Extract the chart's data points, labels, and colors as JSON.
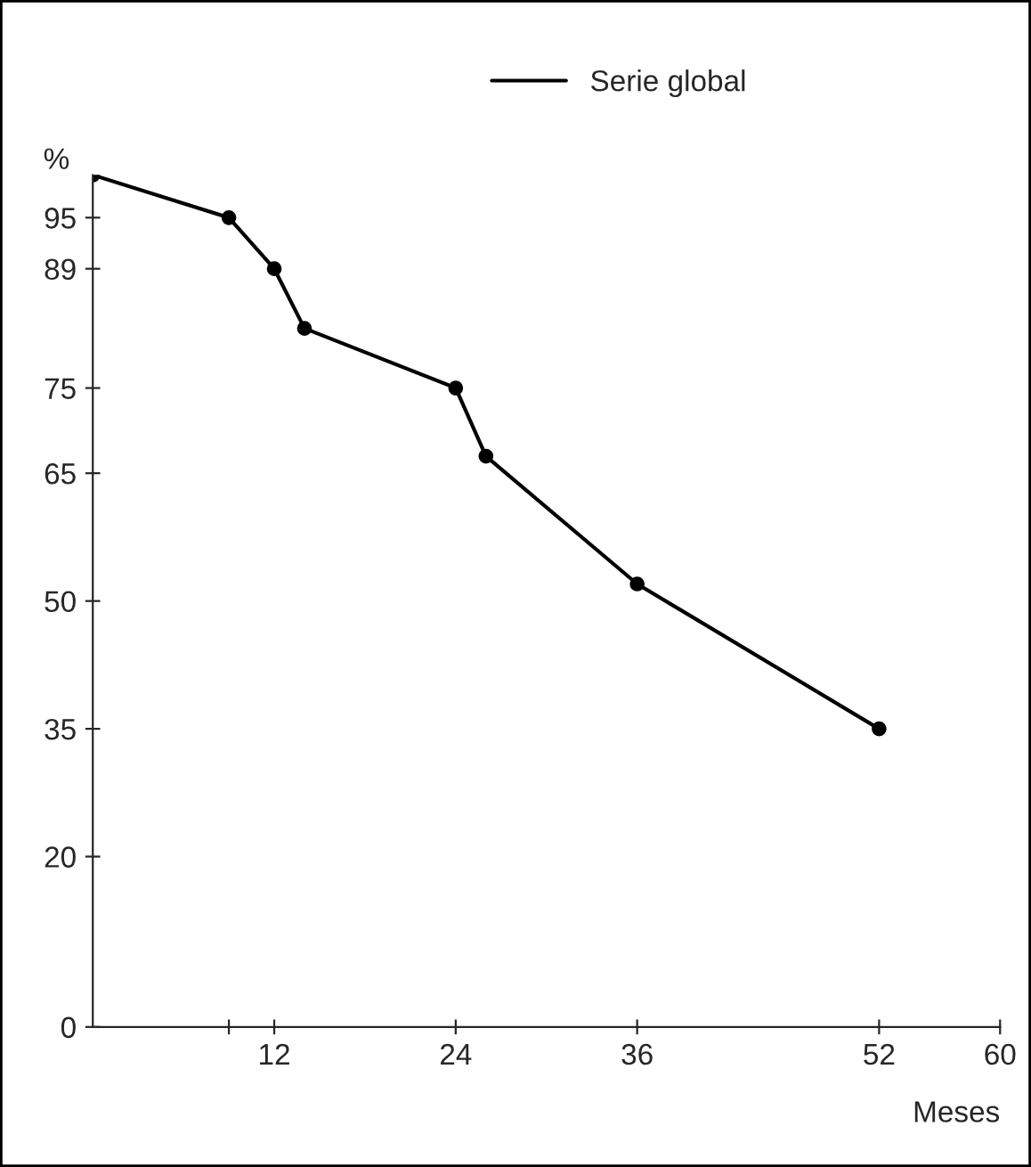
{
  "chart_data": {
    "type": "line",
    "xlabel": "Meses",
    "ylabel": "%",
    "x": [
      0,
      9,
      12,
      14,
      24,
      26,
      36,
      52
    ],
    "series": [
      {
        "name": "Serie global",
        "color": "#000000",
        "values": [
          100,
          95,
          89,
          82,
          75,
          67,
          52,
          35
        ]
      }
    ],
    "xlim": [
      0,
      60
    ],
    "xticks": [
      {
        "value": 9,
        "label": null
      },
      12,
      24,
      36,
      52,
      60
    ],
    "ylim": [
      0,
      100
    ],
    "yticks": [
      0,
      20,
      35,
      50,
      65,
      75,
      89,
      95
    ],
    "marker": "circle",
    "line_style": "solid",
    "legend": "top right",
    "grid": false
  }
}
